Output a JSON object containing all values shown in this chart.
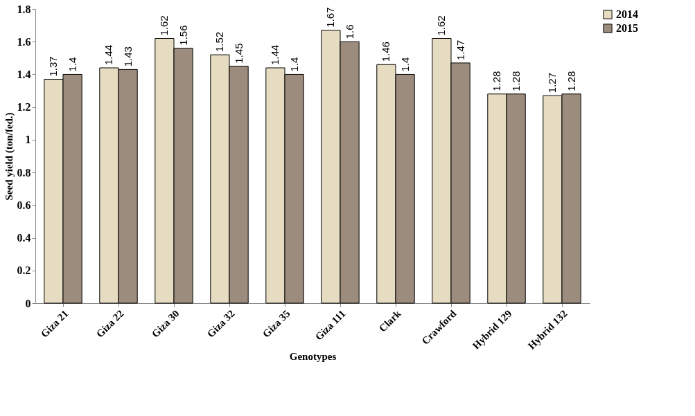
{
  "chart_data": {
    "type": "bar",
    "xlabel": "Genotypes",
    "ylabel": "Seed yield (ton/fed.)",
    "categories": [
      "Giza 21",
      "Giza 22",
      "Giza 30",
      "Giza 32",
      "Giza 35",
      "Giza 111",
      "Clark",
      "Crawford",
      "Hybrid 129",
      "Hybrid 132"
    ],
    "series": [
      {
        "name": "2014",
        "color": "#e6dcc2",
        "values": [
          1.37,
          1.44,
          1.62,
          1.52,
          1.44,
          1.67,
          1.46,
          1.62,
          1.28,
          1.27
        ]
      },
      {
        "name": "2015",
        "color": "#9c8c7e",
        "values": [
          1.4,
          1.43,
          1.56,
          1.45,
          1.4,
          1.6,
          1.4,
          1.47,
          1.28,
          1.28
        ]
      }
    ],
    "ylim": [
      0,
      1.8
    ],
    "yticks": [
      0,
      0.2,
      0.4,
      0.6,
      0.8,
      1,
      1.2,
      1.4,
      1.6,
      1.8
    ],
    "data_labels": true,
    "legend": "right",
    "grid": false
  }
}
